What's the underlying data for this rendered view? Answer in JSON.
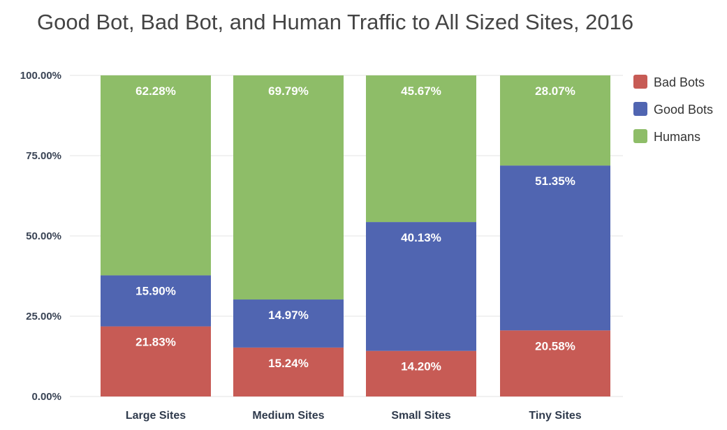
{
  "chart_data": {
    "type": "bar",
    "stacked": true,
    "title": "Good Bot, Bad Bot, and Human Traffic to All Sized Sites, 2016",
    "categories": [
      "Large Sites",
      "Medium Sites",
      "Small Sites",
      "Tiny Sites"
    ],
    "series": [
      {
        "name": "Bad Bots",
        "color": "#c75b55",
        "values": [
          21.83,
          15.24,
          14.2,
          20.58
        ],
        "labels": [
          "21.83%",
          "15.24%",
          "14.20%",
          "20.58%"
        ]
      },
      {
        "name": "Good Bots",
        "color": "#5065b1",
        "values": [
          15.9,
          14.97,
          40.13,
          51.35
        ],
        "labels": [
          "15.90%",
          "14.97%",
          "40.13%",
          "51.35%"
        ]
      },
      {
        "name": "Humans",
        "color": "#8ebd68",
        "values": [
          62.28,
          69.79,
          45.67,
          28.07
        ],
        "labels": [
          "62.28%",
          "69.79%",
          "45.67%",
          "28.07%"
        ]
      }
    ],
    "yticks": [
      {
        "value": 0,
        "label": "0.00%"
      },
      {
        "value": 25,
        "label": "25.00%"
      },
      {
        "value": 50,
        "label": "50.00%"
      },
      {
        "value": 75,
        "label": "75.00%"
      },
      {
        "value": 100,
        "label": "100.00%"
      }
    ],
    "ylim": [
      0,
      100
    ],
    "grid": true,
    "legend_position": "right",
    "xlabel": "",
    "ylabel": ""
  }
}
